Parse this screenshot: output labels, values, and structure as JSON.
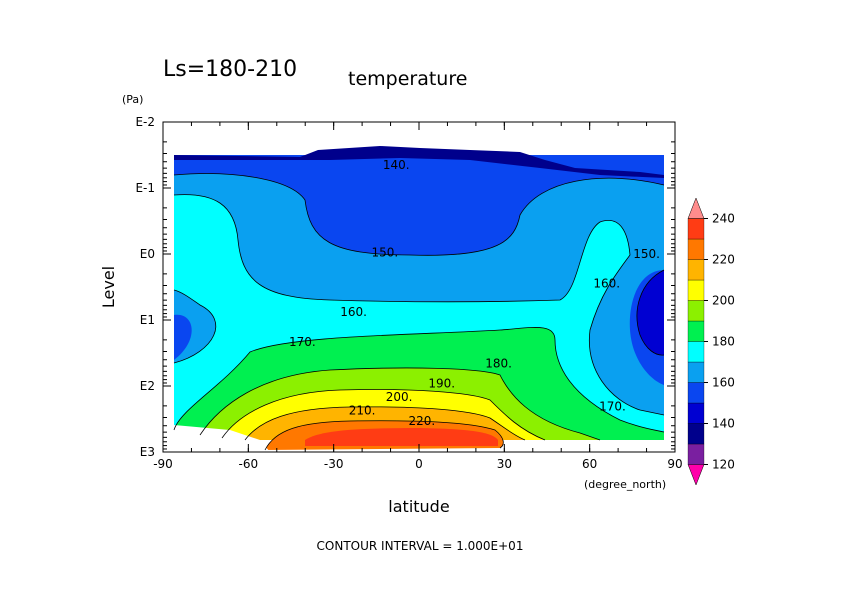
{
  "chart_data": {
    "type": "heatmap",
    "title_left": "Ls=180-210",
    "title_right": "temperature",
    "xlabel": "latitude",
    "x_units": "(degree_north)",
    "ylabel": "Level",
    "y_units": "(Pa)",
    "x_ticks": [
      "-90",
      "-60",
      "-30",
      "0",
      "30",
      "60",
      "90"
    ],
    "x_tick_values": [
      -90,
      -60,
      -30,
      0,
      30,
      60,
      90
    ],
    "y_ticks": [
      "E-2",
      "E-1",
      "E0",
      "E1",
      "E2",
      "E3"
    ],
    "y_tick_values": [
      -2,
      -1,
      0,
      1,
      2,
      3
    ],
    "xlim": [
      -90,
      90
    ],
    "ylim_log10_pa": [
      -2,
      3
    ],
    "contour_interval_text": "CONTOUR INTERVAL = 1.000E+01",
    "contour_labels": [
      {
        "text": "140.",
        "lat": -8,
        "level": -1.35
      },
      {
        "text": "150.",
        "lat": -12,
        "level": -0.02
      },
      {
        "text": "150.",
        "lat": 80,
        "level": 0.0
      },
      {
        "text": "160.",
        "lat": 66,
        "level": 0.45
      },
      {
        "text": "160.",
        "lat": -23,
        "level": 0.88
      },
      {
        "text": "170.",
        "lat": -41,
        "level": 1.33
      },
      {
        "text": "180.",
        "lat": 28,
        "level": 1.66
      },
      {
        "text": "190.",
        "lat": 8,
        "level": 1.96
      },
      {
        "text": "200.",
        "lat": -7,
        "level": 2.17
      },
      {
        "text": "210.",
        "lat": -20,
        "level": 2.37
      },
      {
        "text": "220.",
        "lat": 1,
        "level": 2.53
      },
      {
        "text": "170.",
        "lat": 68,
        "level": 2.31
      }
    ],
    "colorbar": {
      "labels": [
        "120",
        "140",
        "160",
        "180",
        "200",
        "220",
        "240"
      ],
      "levels": [
        110,
        120,
        130,
        140,
        150,
        160,
        170,
        180,
        190,
        200,
        210,
        220,
        230,
        240,
        250
      ],
      "colors": [
        "#ff00aa",
        "#7a1fa0",
        "#00008c",
        "#0000d2",
        "#0a46f0",
        "#0aa0f0",
        "#00ffff",
        "#00f050",
        "#8cf000",
        "#ffff00",
        "#ffb400",
        "#ff7800",
        "#ff3c14",
        "#ff8c8c"
      ]
    }
  }
}
